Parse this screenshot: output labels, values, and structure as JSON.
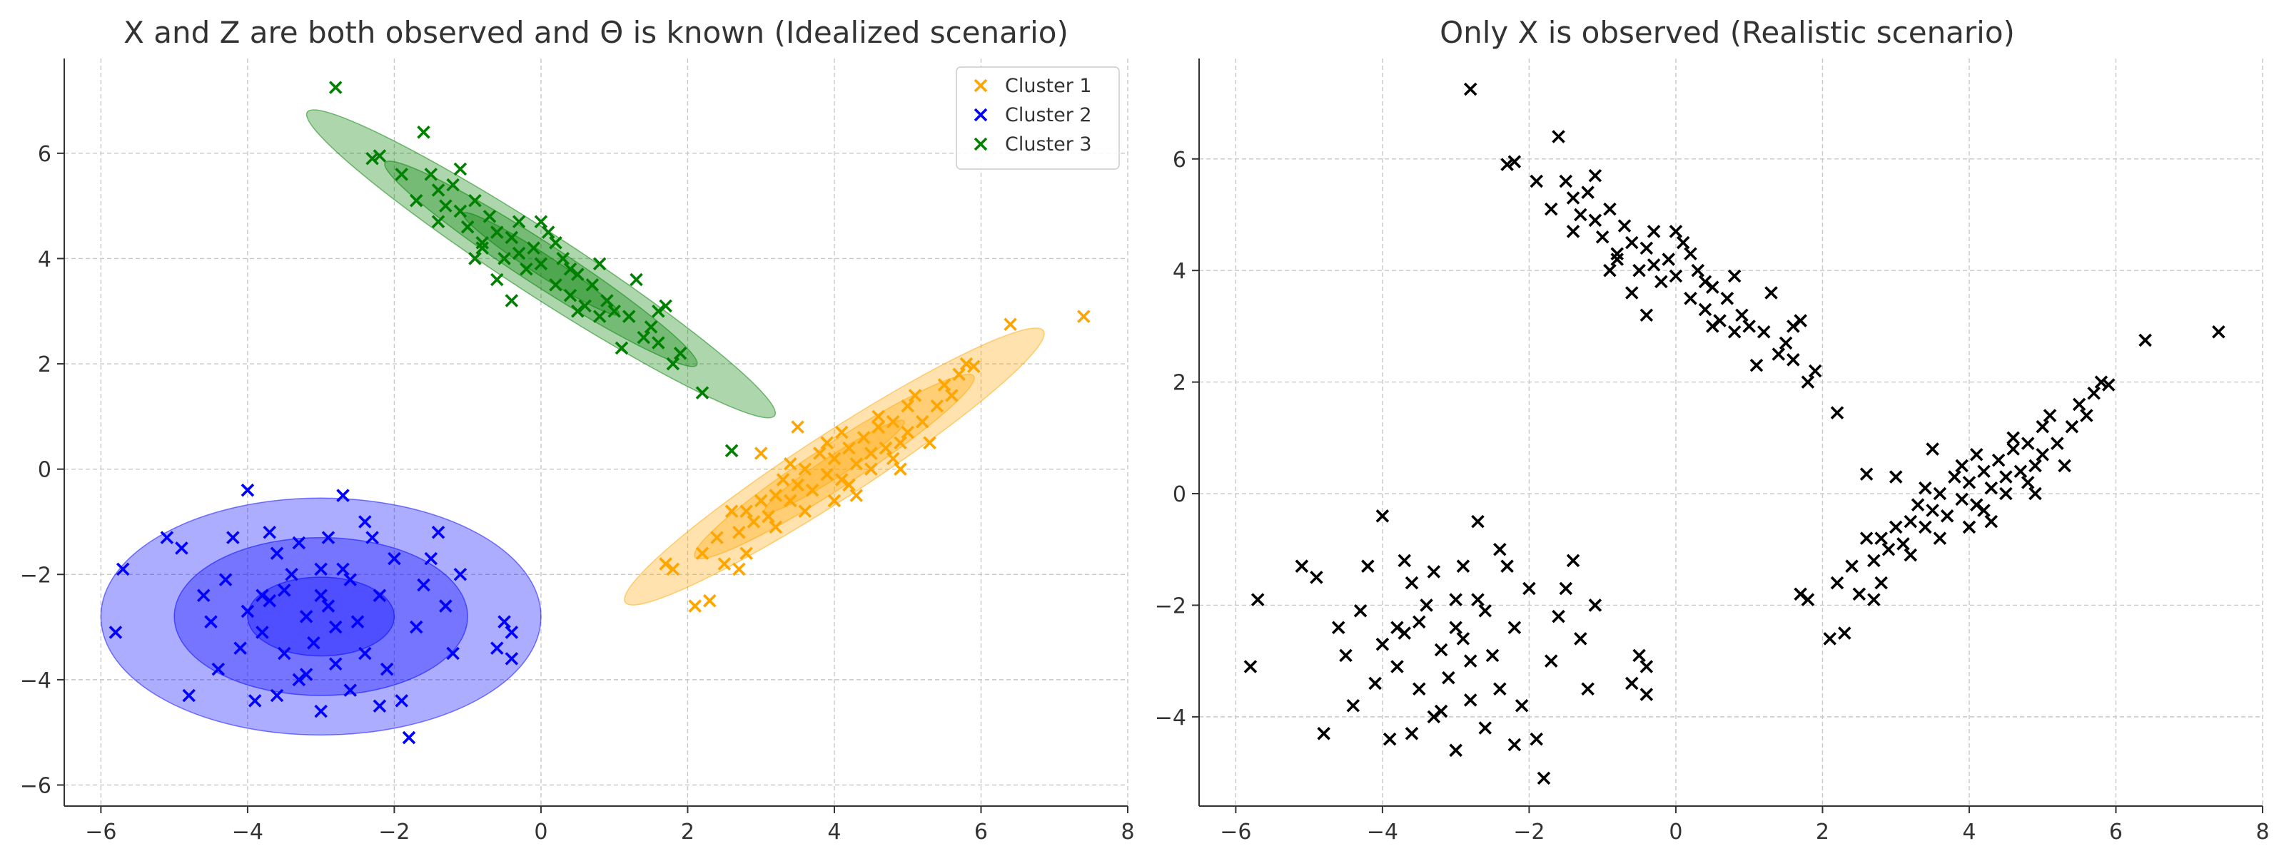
{
  "chart_data": [
    {
      "type": "scatter",
      "title": "X and Z are both observed and Θ is known (Idealized scenario)",
      "xlim": [
        -6.5,
        8.0
      ],
      "ylim": [
        -6.4,
        7.8
      ],
      "xticks": [
        -6,
        -4,
        -2,
        0,
        2,
        4,
        6,
        8
      ],
      "yticks": [
        -6,
        -4,
        -2,
        0,
        2,
        4,
        6
      ],
      "grid": true,
      "legend": "top-right",
      "series": [
        {
          "name": "Cluster 1",
          "color": "#ffa500",
          "marker": "x",
          "points": [
            [
              7.4,
              2.9
            ],
            [
              6.4,
              2.75
            ],
            [
              5.9,
              1.95
            ],
            [
              5.8,
              2.0
            ],
            [
              5.6,
              1.4
            ],
            [
              5.5,
              1.6
            ],
            [
              5.4,
              1.2
            ],
            [
              5.2,
              0.9
            ],
            [
              5.0,
              1.2
            ],
            [
              5.0,
              0.7
            ],
            [
              4.9,
              0.5
            ],
            [
              4.8,
              0.9
            ],
            [
              4.7,
              0.4
            ],
            [
              4.6,
              0.8
            ],
            [
              4.5,
              0.3
            ],
            [
              4.4,
              0.6
            ],
            [
              4.3,
              0.1
            ],
            [
              4.2,
              0.4
            ],
            [
              4.1,
              -0.2
            ],
            [
              4.0,
              0.2
            ],
            [
              3.9,
              -0.1
            ],
            [
              3.8,
              0.3
            ],
            [
              3.7,
              -0.4
            ],
            [
              3.6,
              0.0
            ],
            [
              3.5,
              -0.3
            ],
            [
              3.4,
              -0.6
            ],
            [
              3.3,
              -0.2
            ],
            [
              3.2,
              -0.5
            ],
            [
              3.1,
              -0.9
            ],
            [
              3.0,
              -0.6
            ],
            [
              2.9,
              -1.0
            ],
            [
              2.8,
              -0.8
            ],
            [
              2.7,
              -1.2
            ],
            [
              2.6,
              -0.8
            ],
            [
              2.8,
              -1.6
            ],
            [
              2.7,
              -1.9
            ],
            [
              2.4,
              -1.3
            ],
            [
              2.2,
              -1.6
            ],
            [
              2.3,
              -2.5
            ],
            [
              2.1,
              -2.6
            ],
            [
              1.8,
              -1.9
            ],
            [
              1.7,
              -1.8
            ],
            [
              4.2,
              -0.3
            ],
            [
              4.5,
              0.0
            ],
            [
              3.9,
              0.5
            ],
            [
              4.8,
              0.2
            ],
            [
              5.3,
              0.5
            ],
            [
              3.4,
              0.1
            ],
            [
              4.0,
              -0.6
            ],
            [
              3.5,
              0.8
            ],
            [
              4.6,
              1.0
            ],
            [
              5.7,
              1.8
            ],
            [
              3.0,
              0.3
            ],
            [
              3.2,
              -1.1
            ],
            [
              4.3,
              -0.5
            ],
            [
              4.9,
              0.0
            ],
            [
              3.6,
              -0.8
            ],
            [
              4.1,
              0.7
            ],
            [
              5.1,
              1.4
            ],
            [
              2.5,
              -1.8
            ]
          ]
        },
        {
          "name": "Cluster 2",
          "color": "#0000ff",
          "marker": "x",
          "points": [
            [
              -5.7,
              -1.9
            ],
            [
              -5.8,
              -3.1
            ],
            [
              -5.1,
              -1.3
            ],
            [
              -4.9,
              -1.5
            ],
            [
              -4.8,
              -4.3
            ],
            [
              -4.6,
              -2.4
            ],
            [
              -4.4,
              -3.8
            ],
            [
              -4.3,
              -2.1
            ],
            [
              -4.2,
              -1.3
            ],
            [
              -4.0,
              -0.4
            ],
            [
              -4.0,
              -2.7
            ],
            [
              -3.9,
              -4.4
            ],
            [
              -3.8,
              -3.1
            ],
            [
              -3.7,
              -2.5
            ],
            [
              -3.6,
              -1.6
            ],
            [
              -3.6,
              -4.3
            ],
            [
              -3.5,
              -3.5
            ],
            [
              -3.4,
              -2.0
            ],
            [
              -3.3,
              -1.4
            ],
            [
              -3.2,
              -2.8
            ],
            [
              -3.1,
              -3.3
            ],
            [
              -3.0,
              -1.9
            ],
            [
              -3.0,
              -4.6
            ],
            [
              -2.9,
              -2.6
            ],
            [
              -2.8,
              -3.0
            ],
            [
              -2.7,
              -0.5
            ],
            [
              -2.7,
              -1.9
            ],
            [
              -2.6,
              -4.2
            ],
            [
              -2.5,
              -2.9
            ],
            [
              -2.4,
              -3.5
            ],
            [
              -2.3,
              -1.3
            ],
            [
              -2.2,
              -2.4
            ],
            [
              -2.1,
              -3.8
            ],
            [
              -2.0,
              -1.7
            ],
            [
              -1.9,
              -4.4
            ],
            [
              -1.8,
              -5.1
            ],
            [
              -1.7,
              -3.0
            ],
            [
              -1.6,
              -2.2
            ],
            [
              -1.4,
              -1.2
            ],
            [
              -1.3,
              -2.6
            ],
            [
              -1.2,
              -3.5
            ],
            [
              -1.1,
              -2.0
            ],
            [
              -0.6,
              -3.4
            ],
            [
              -0.5,
              -2.9
            ],
            [
              -0.4,
              -3.6
            ],
            [
              -0.4,
              -3.1
            ],
            [
              -3.5,
              -2.3
            ],
            [
              -3.2,
              -3.9
            ],
            [
              -2.9,
              -1.3
            ],
            [
              -2.6,
              -2.1
            ],
            [
              -3.8,
              -2.4
            ],
            [
              -4.1,
              -3.4
            ],
            [
              -2.2,
              -4.5
            ],
            [
              -1.5,
              -1.7
            ],
            [
              -3.3,
              -4.0
            ],
            [
              -2.8,
              -3.7
            ],
            [
              -3.7,
              -1.2
            ],
            [
              -4.5,
              -2.9
            ],
            [
              -2.4,
              -1.0
            ],
            [
              -3.0,
              -2.4
            ]
          ]
        },
        {
          "name": "Cluster 3",
          "color": "#008000",
          "marker": "x",
          "points": [
            [
              -2.8,
              7.25
            ],
            [
              -2.3,
              5.9
            ],
            [
              -2.2,
              5.95
            ],
            [
              -1.9,
              5.6
            ],
            [
              -1.6,
              6.4
            ],
            [
              -1.5,
              5.6
            ],
            [
              -1.4,
              5.3
            ],
            [
              -1.3,
              5.0
            ],
            [
              -1.2,
              5.4
            ],
            [
              -1.1,
              4.9
            ],
            [
              -1.0,
              4.6
            ],
            [
              -0.9,
              5.1
            ],
            [
              -0.8,
              4.3
            ],
            [
              -0.7,
              4.8
            ],
            [
              -0.6,
              4.5
            ],
            [
              -0.5,
              4.0
            ],
            [
              -0.4,
              4.4
            ],
            [
              -0.3,
              4.1
            ],
            [
              -0.2,
              3.8
            ],
            [
              -0.1,
              4.2
            ],
            [
              0.0,
              3.9
            ],
            [
              0.1,
              4.5
            ],
            [
              0.2,
              3.5
            ],
            [
              0.3,
              4.0
            ],
            [
              0.4,
              3.3
            ],
            [
              0.5,
              3.7
            ],
            [
              0.6,
              3.1
            ],
            [
              0.7,
              3.5
            ],
            [
              0.8,
              2.9
            ],
            [
              0.9,
              3.2
            ],
            [
              1.0,
              3.0
            ],
            [
              1.1,
              2.3
            ],
            [
              1.3,
              3.6
            ],
            [
              1.5,
              2.7
            ],
            [
              1.6,
              2.4
            ],
            [
              1.7,
              3.1
            ],
            [
              1.8,
              2.0
            ],
            [
              1.9,
              2.2
            ],
            [
              2.2,
              1.45
            ],
            [
              -0.9,
              4.0
            ],
            [
              -0.3,
              4.7
            ],
            [
              0.2,
              4.3
            ],
            [
              -1.7,
              5.1
            ],
            [
              -0.6,
              3.6
            ],
            [
              0.5,
              3.0
            ],
            [
              1.2,
              2.9
            ],
            [
              -1.1,
              5.7
            ],
            [
              -0.4,
              3.2
            ],
            [
              0.8,
              3.9
            ],
            [
              1.4,
              2.5
            ],
            [
              0.0,
              4.7
            ],
            [
              -1.4,
              4.7
            ],
            [
              0.4,
              3.8
            ],
            [
              -0.8,
              4.2
            ],
            [
              1.6,
              3.0
            ],
            [
              2.6,
              0.35
            ]
          ]
        }
      ],
      "ellipses": [
        {
          "cluster": "Cluster 1",
          "cx": 4.0,
          "cy": 0.05,
          "rx": 3.4,
          "ry": 0.62,
          "angle": 33,
          "color": "#ffa500",
          "levels": [
            1,
            2,
            3
          ]
        },
        {
          "cluster": "Cluster 2",
          "cx": -3.0,
          "cy": -2.8,
          "rx": 3.0,
          "ry": 2.25,
          "angle": 0,
          "color": "#0000ff",
          "levels": [
            1,
            2,
            3
          ]
        },
        {
          "cluster": "Cluster 3",
          "cx": 0.0,
          "cy": 3.9,
          "rx": 3.8,
          "ry": 0.6,
          "angle": -33,
          "color": "#008000",
          "levels": [
            1,
            2,
            3
          ]
        }
      ]
    },
    {
      "type": "scatter",
      "title": "Only X is observed (Realistic scenario)",
      "xlim": [
        -6.5,
        8.0
      ],
      "ylim": [
        -5.6,
        7.8
      ],
      "xticks": [
        -6,
        -4,
        -2,
        0,
        2,
        4,
        6,
        8
      ],
      "yticks": [
        -4,
        -2,
        0,
        2,
        4,
        6
      ],
      "grid": true,
      "series": [
        {
          "color": "#000000",
          "marker": "x",
          "source": "all clusters combined"
        }
      ]
    }
  ]
}
